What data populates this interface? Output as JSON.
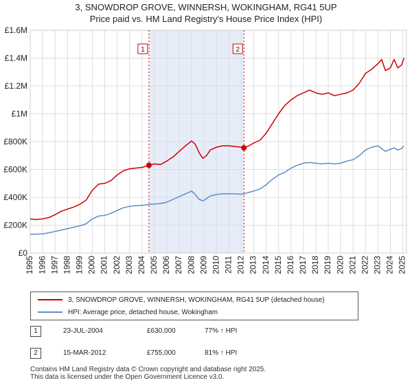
{
  "chart_data": {
    "type": "line",
    "title": "3, SNOWDROP GROVE, WINNERSH, WOKINGHAM, RG41 5UP",
    "subtitle": "Price paid vs. HM Land Registry's House Price Index (HPI)",
    "xlabel": "",
    "ylabel": "",
    "xlim": [
      1995,
      2025.3
    ],
    "ylim": [
      0,
      1600000
    ],
    "y_ticks": [
      0,
      200000,
      400000,
      600000,
      800000,
      1000000,
      1200000,
      1400000,
      1600000
    ],
    "y_tick_labels": [
      "£0",
      "£200K",
      "£400K",
      "£600K",
      "£800K",
      "£1M",
      "£1.2M",
      "£1.4M",
      "£1.6M"
    ],
    "x_ticks": [
      1995,
      1996,
      1997,
      1998,
      1999,
      2000,
      2001,
      2002,
      2003,
      2004,
      2005,
      2006,
      2007,
      2008,
      2009,
      2010,
      2011,
      2012,
      2013,
      2014,
      2015,
      2016,
      2017,
      2018,
      2019,
      2020,
      2021,
      2022,
      2023,
      2024,
      2025
    ],
    "x_tick_labels": [
      "1995",
      "1996",
      "1997",
      "1998",
      "1999",
      "2000",
      "2001",
      "2002",
      "2003",
      "2004",
      "2005",
      "2006",
      "2007",
      "2008",
      "2009",
      "2010",
      "2011",
      "2012",
      "2013",
      "2014",
      "2015",
      "2016",
      "2017",
      "2018",
      "2019",
      "2020",
      "2021",
      "2022",
      "2023",
      "2024",
      "2025"
    ],
    "grid": true,
    "shaded_period": [
      2004.56,
      2012.21
    ],
    "series": [
      {
        "name": "3, SNOWDROP GROVE, WINNERSH, WOKINGHAM, RG41 5UP (detached house)",
        "color": "#cc0000",
        "x": [
          1995,
          1995.5,
          1996,
          1996.5,
          1997,
          1997.5,
          1998,
          1998.5,
          1999,
          1999.5,
          2000,
          2000.5,
          2001,
          2001.5,
          2002,
          2002.5,
          2003,
          2003.5,
          2004,
          2004.56,
          2005,
          2005.5,
          2006,
          2006.5,
          2007,
          2007.5,
          2008,
          2008.3,
          2008.6,
          2008.9,
          2009.2,
          2009.5,
          2010,
          2010.5,
          2011,
          2011.5,
          2012,
          2012.21,
          2012.6,
          2013,
          2013.5,
          2014,
          2014.5,
          2015,
          2015.5,
          2016,
          2016.5,
          2017,
          2017.5,
          2018,
          2018.5,
          2019,
          2019.5,
          2020,
          2020.5,
          2021,
          2021.5,
          2022,
          2022.5,
          2023,
          2023.3,
          2023.6,
          2024,
          2024.3,
          2024.6,
          2024.9,
          2025.1
        ],
        "values": [
          245000,
          240000,
          245000,
          255000,
          275000,
          300000,
          315000,
          330000,
          350000,
          380000,
          450000,
          495000,
          500000,
          520000,
          560000,
          590000,
          605000,
          610000,
          615000,
          630000,
          640000,
          635000,
          660000,
          690000,
          730000,
          770000,
          805000,
          780000,
          720000,
          680000,
          700000,
          740000,
          760000,
          770000,
          770000,
          765000,
          760000,
          755000,
          770000,
          790000,
          810000,
          860000,
          930000,
          1000000,
          1060000,
          1100000,
          1130000,
          1150000,
          1170000,
          1150000,
          1140000,
          1150000,
          1130000,
          1140000,
          1150000,
          1170000,
          1220000,
          1290000,
          1320000,
          1360000,
          1390000,
          1310000,
          1330000,
          1390000,
          1330000,
          1350000,
          1400000
        ]
      },
      {
        "name": "HPI: Average price, detached house, Wokingham",
        "color": "#5b8ec9",
        "x": [
          1995,
          1995.5,
          1996,
          1996.5,
          1997,
          1997.5,
          1998,
          1998.5,
          1999,
          1999.5,
          2000,
          2000.5,
          2001,
          2001.5,
          2002,
          2002.5,
          2003,
          2003.5,
          2004,
          2004.56,
          2005,
          2005.5,
          2006,
          2006.5,
          2007,
          2007.5,
          2008,
          2008.3,
          2008.6,
          2008.9,
          2009.2,
          2009.5,
          2010,
          2010.5,
          2011,
          2011.5,
          2012,
          2012.21,
          2012.6,
          2013,
          2013.5,
          2014,
          2014.5,
          2015,
          2015.5,
          2016,
          2016.5,
          2017,
          2017.5,
          2018,
          2018.5,
          2019,
          2019.5,
          2020,
          2020.5,
          2021,
          2021.5,
          2022,
          2022.5,
          2023,
          2023.3,
          2023.6,
          2024,
          2024.3,
          2024.6,
          2024.9,
          2025.1
        ],
        "values": [
          135000,
          136000,
          138000,
          145000,
          155000,
          165000,
          175000,
          185000,
          195000,
          210000,
          245000,
          265000,
          270000,
          285000,
          305000,
          325000,
          335000,
          340000,
          342000,
          348000,
          352000,
          355000,
          365000,
          385000,
          405000,
          425000,
          445000,
          420000,
          385000,
          375000,
          390000,
          410000,
          420000,
          425000,
          425000,
          425000,
          422000,
          425000,
          435000,
          445000,
          460000,
          490000,
          530000,
          560000,
          580000,
          610000,
          630000,
          645000,
          650000,
          645000,
          640000,
          645000,
          640000,
          645000,
          660000,
          670000,
          700000,
          740000,
          760000,
          770000,
          750000,
          730000,
          745000,
          755000,
          740000,
          750000,
          770000
        ]
      }
    ],
    "annotations": [
      {
        "label": "1",
        "x": 2004.56,
        "value": 630000
      },
      {
        "label": "2",
        "x": 2012.21,
        "value": 755000
      }
    ]
  },
  "legend": {
    "property_label": "3, SNOWDROP GROVE, WINNERSH, WOKINGHAM, RG41 5UP (detached house)",
    "hpi_label": "HPI: Average price, detached house, Wokingham",
    "property_color": "#cc0000",
    "hpi_color": "#5b8ec9"
  },
  "sales": [
    {
      "num": "1",
      "date": "23-JUL-2004",
      "price": "£630,000",
      "hpi": "77% ↑ HPI"
    },
    {
      "num": "2",
      "date": "15-MAR-2012",
      "price": "£755,000",
      "hpi": "81% ↑ HPI"
    }
  ],
  "footer": {
    "line1": "Contains HM Land Registry data © Crown copyright and database right 2025.",
    "line2": "This data is licensed under the Open Government Licence v3.0."
  }
}
